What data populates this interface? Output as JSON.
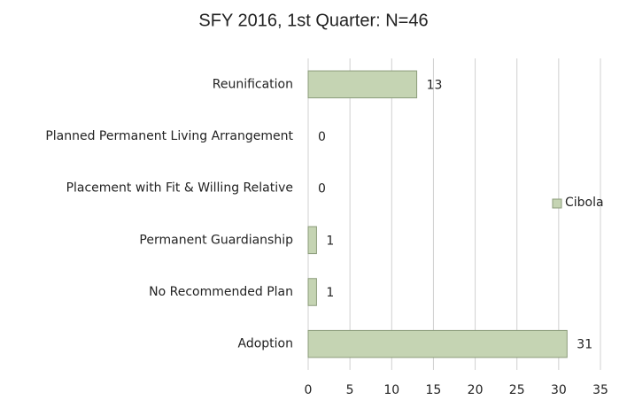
{
  "chart_data": {
    "type": "bar",
    "orientation": "horizontal",
    "title": "SFY 2016, 1st Quarter: N=46",
    "categories": [
      "Reunification",
      "Planned Permanent Living Arrangement",
      "Placement with Fit & Willing Relative",
      "Permanent Guardianship",
      "No Recommended Plan",
      "Adoption"
    ],
    "series": [
      {
        "name": "Cibola",
        "color": "#c5d4b3",
        "values": [
          13,
          0,
          0,
          1,
          1,
          31
        ]
      }
    ],
    "xlim": [
      0,
      35
    ],
    "xticks": [
      0,
      5,
      10,
      15,
      20,
      25,
      30,
      35
    ],
    "grid": true,
    "legend": "right"
  }
}
